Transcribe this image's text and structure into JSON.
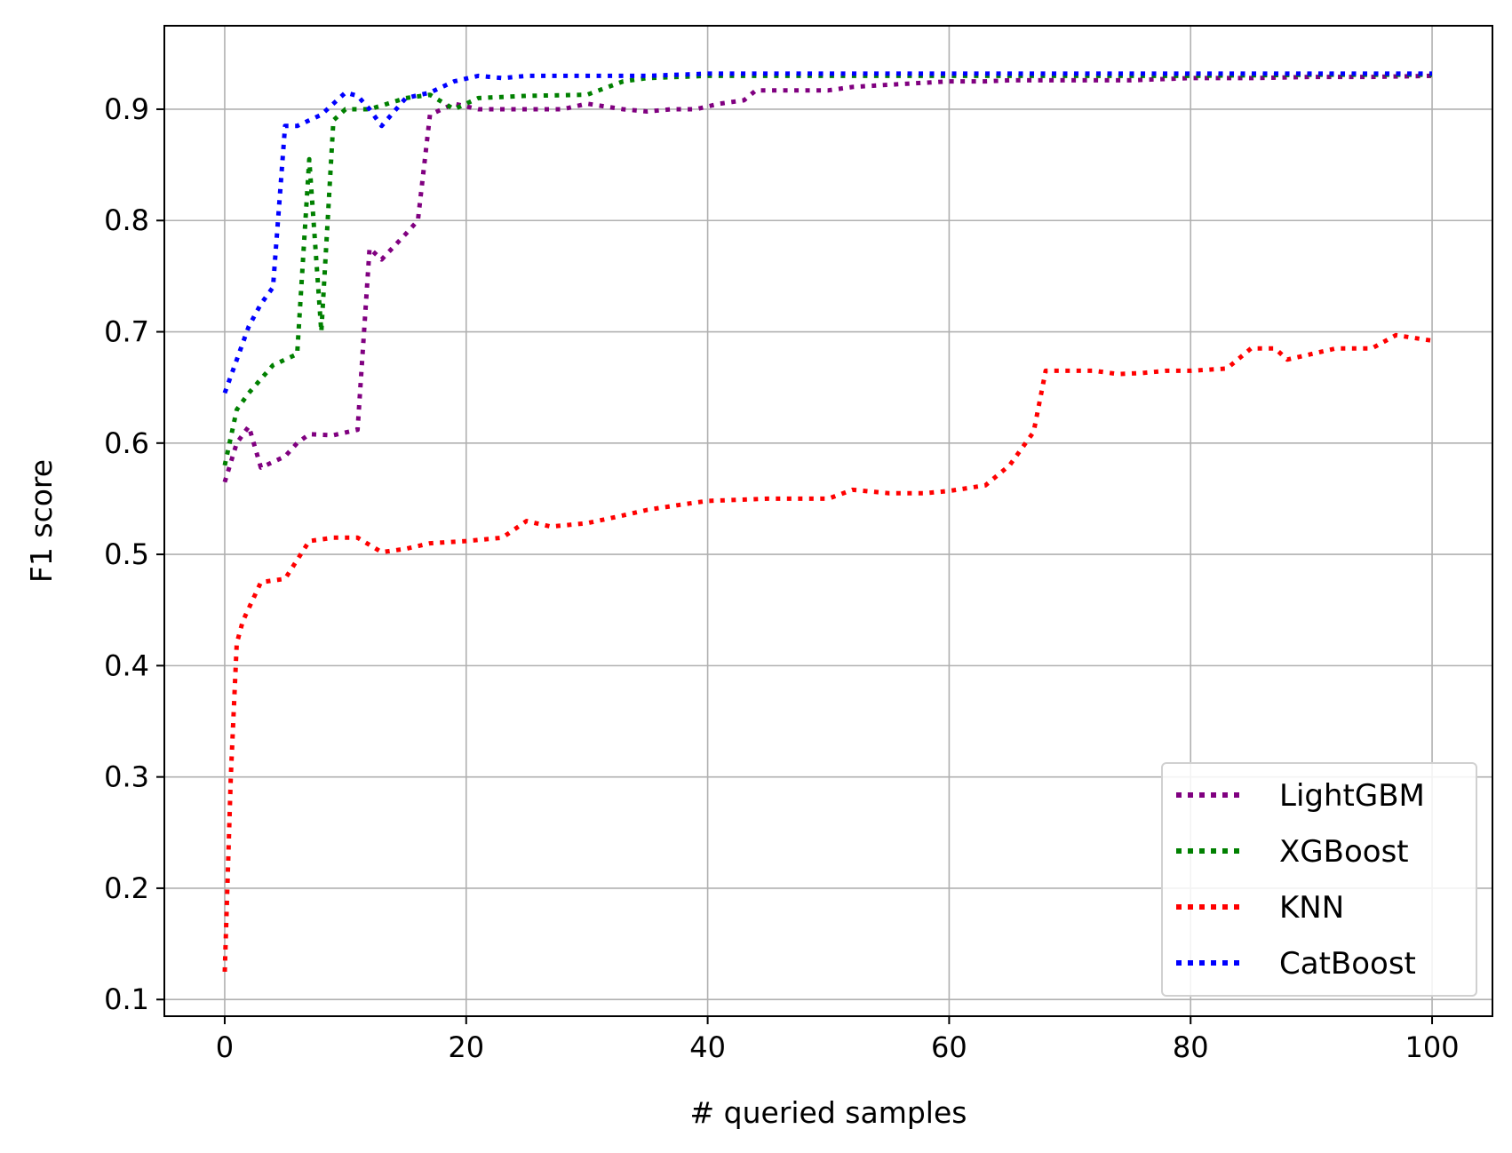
{
  "chart_data": {
    "type": "line",
    "title": "",
    "xlabel": "# queried samples",
    "ylabel": "F1 score",
    "xlim": [
      -5,
      105
    ],
    "ylim": [
      0.085,
      0.975
    ],
    "xticks": [
      0,
      20,
      40,
      60,
      80,
      100
    ],
    "yticks": [
      0.1,
      0.2,
      0.3,
      0.4,
      0.5,
      0.6,
      0.7,
      0.8,
      0.9
    ],
    "grid": true,
    "legend_position": "bottom-right",
    "series": [
      {
        "name": "LightGBM",
        "color": "#800080",
        "x": [
          0,
          1,
          2,
          3,
          5,
          6,
          7,
          9,
          11,
          12,
          13,
          15,
          16,
          17,
          19,
          21,
          25,
          28,
          30,
          33,
          35,
          37,
          39,
          41,
          43,
          44,
          50,
          52,
          55,
          60,
          63,
          65,
          75,
          80,
          85,
          90,
          95,
          100
        ],
        "y": [
          0.565,
          0.6,
          0.615,
          0.578,
          0.588,
          0.6,
          0.608,
          0.607,
          0.612,
          0.775,
          0.765,
          0.788,
          0.8,
          0.895,
          0.905,
          0.9,
          0.9,
          0.9,
          0.905,
          0.9,
          0.898,
          0.9,
          0.9,
          0.905,
          0.908,
          0.917,
          0.917,
          0.92,
          0.922,
          0.925,
          0.925,
          0.926,
          0.926,
          0.928,
          0.928,
          0.929,
          0.929,
          0.93
        ]
      },
      {
        "name": "XGBoost",
        "color": "#008000",
        "x": [
          0,
          1,
          2,
          4,
          6,
          7,
          8,
          9,
          10,
          12,
          15,
          17,
          19,
          21,
          25,
          30,
          33,
          35,
          40,
          50,
          60,
          70,
          80,
          90,
          100
        ],
        "y": [
          0.58,
          0.63,
          0.645,
          0.67,
          0.68,
          0.855,
          0.7,
          0.89,
          0.9,
          0.9,
          0.91,
          0.913,
          0.9,
          0.91,
          0.912,
          0.913,
          0.925,
          0.928,
          0.93,
          0.93,
          0.93,
          0.93,
          0.93,
          0.931,
          0.931
        ]
      },
      {
        "name": "KNN",
        "color": "#ff0000",
        "x": [
          0,
          0.5,
          1,
          1.5,
          3,
          5,
          7,
          9,
          11,
          13,
          15,
          17,
          20,
          23,
          25,
          27,
          30,
          33,
          35,
          38,
          40,
          45,
          50,
          52,
          55,
          58,
          60,
          63,
          65,
          67,
          68,
          70,
          72,
          74,
          76,
          78,
          80,
          83,
          85,
          87,
          88,
          90,
          92,
          95,
          97,
          100
        ],
        "y": [
          0.125,
          0.3,
          0.42,
          0.44,
          0.475,
          0.478,
          0.512,
          0.515,
          0.515,
          0.502,
          0.505,
          0.51,
          0.512,
          0.515,
          0.53,
          0.525,
          0.528,
          0.535,
          0.54,
          0.545,
          0.548,
          0.55,
          0.55,
          0.558,
          0.555,
          0.555,
          0.557,
          0.562,
          0.58,
          0.61,
          0.665,
          0.665,
          0.665,
          0.662,
          0.663,
          0.665,
          0.665,
          0.667,
          0.685,
          0.685,
          0.675,
          0.68,
          0.685,
          0.685,
          0.697,
          0.692
        ]
      },
      {
        "name": "CatBoost",
        "color": "#0000ff",
        "x": [
          0,
          2,
          3,
          4,
          5,
          6,
          8,
          10,
          11,
          12,
          13,
          15,
          17,
          19,
          21,
          23,
          25,
          28,
          30,
          35,
          40,
          50,
          55,
          60,
          70,
          80,
          90,
          100
        ],
        "y": [
          0.645,
          0.705,
          0.725,
          0.74,
          0.885,
          0.885,
          0.895,
          0.915,
          0.912,
          0.9,
          0.885,
          0.91,
          0.915,
          0.925,
          0.93,
          0.928,
          0.93,
          0.93,
          0.93,
          0.93,
          0.932,
          0.932,
          0.932,
          0.932,
          0.932,
          0.932,
          0.932,
          0.932
        ]
      }
    ]
  }
}
